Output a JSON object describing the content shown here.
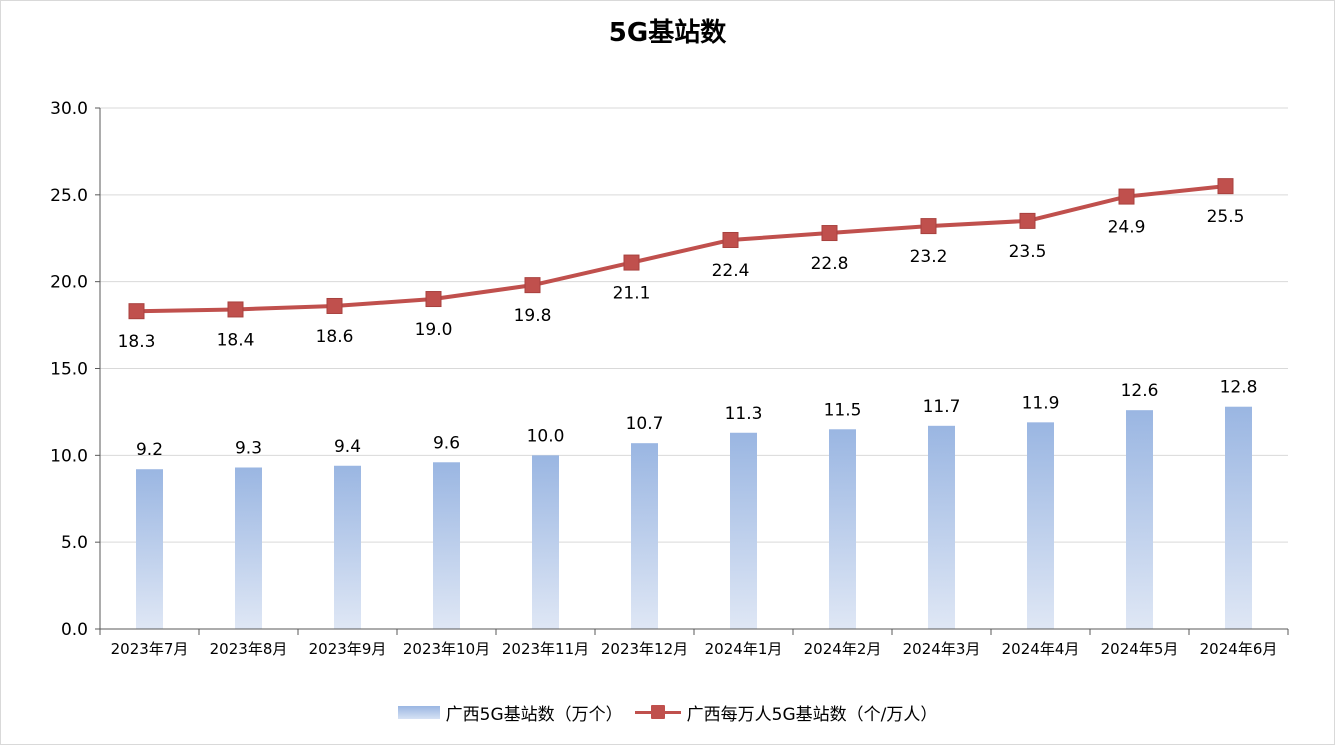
{
  "colors": {
    "bar_top": "#9ab6e2",
    "bar_bottom": "#dfe7f5",
    "line": "#c0504d",
    "grid": "#d9d9d9",
    "axis": "#595959"
  },
  "chart_data": {
    "type": "bar",
    "title": "5G基站数",
    "categories": [
      "2023年7月",
      "2023年8月",
      "2023年9月",
      "2023年10月",
      "2023年11月",
      "2023年12月",
      "2024年1月",
      "2024年2月",
      "2024年3月",
      "2024年4月",
      "2024年5月",
      "2024年6月"
    ],
    "series": [
      {
        "name": "广西5G基站数（万个）",
        "type": "bar",
        "values": [
          9.2,
          9.3,
          9.4,
          9.6,
          10.0,
          10.7,
          11.3,
          11.5,
          11.7,
          11.9,
          12.6,
          12.8
        ],
        "labels": [
          "9.2",
          "9.3",
          "9.4",
          "9.6",
          "10.0",
          "10.7",
          "11.3",
          "11.5",
          "11.7",
          "11.9",
          "12.6",
          "12.8"
        ]
      },
      {
        "name": "广西每万人5G基站数（个/万人）",
        "type": "line",
        "values": [
          18.3,
          18.4,
          18.6,
          19.0,
          19.8,
          21.1,
          22.4,
          22.8,
          23.2,
          23.5,
          24.9,
          25.5
        ],
        "labels": [
          "18.3",
          "18.4",
          "18.6",
          "19.0",
          "19.8",
          "21.1",
          "22.4",
          "22.8",
          "23.2",
          "23.5",
          "24.9",
          "25.5"
        ]
      }
    ],
    "ylim": [
      0,
      30
    ],
    "yticks": [
      "0.0",
      "5.0",
      "10.0",
      "15.0",
      "20.0",
      "25.0",
      "30.0"
    ],
    "grid": true,
    "legend_position": "bottom"
  }
}
